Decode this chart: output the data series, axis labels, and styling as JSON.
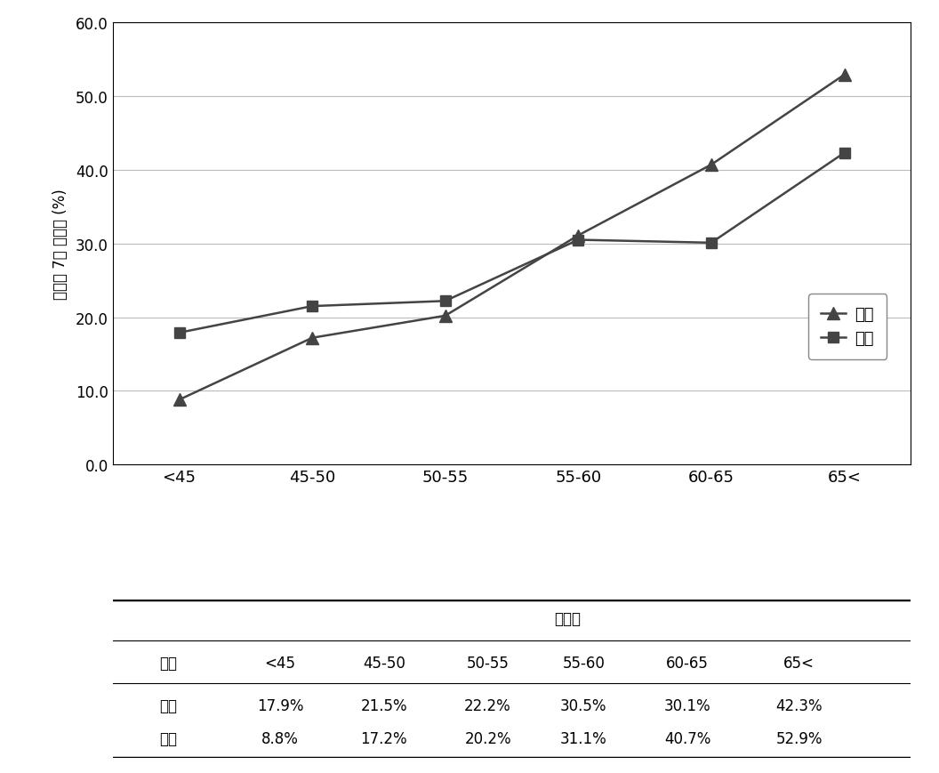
{
  "categories": [
    "<45",
    "45-50",
    "50-55",
    "55-60",
    "60-65",
    "65<"
  ],
  "female_values": [
    8.8,
    17.2,
    20.2,
    31.1,
    40.7,
    52.9
  ],
  "male_values": [
    17.9,
    21.5,
    22.2,
    30.5,
    30.1,
    42.3
  ],
  "ylabel": "고혈압 7년 발생률 (%)",
  "ylim": [
    0.0,
    60.0
  ],
  "yticks": [
    0.0,
    10.0,
    20.0,
    30.0,
    40.0,
    50.0,
    60.0
  ],
  "line_color": "#444444",
  "legend_female": "여성",
  "legend_male": "남성",
  "table_title": "연령별",
  "table_row0_label": "성별",
  "table_row1_label": "남성",
  "table_row2_label": "여성",
  "table_row1_values": [
    "17.9%",
    "21.5%",
    "22.2%",
    "30.5%",
    "30.1%",
    "42.3%"
  ],
  "table_row2_values": [
    "8.8%",
    "17.2%",
    "20.2%",
    "31.1%",
    "40.7%",
    "52.9%"
  ],
  "table_col_labels": [
    "<45",
    "45-50",
    "50-55",
    "55-60",
    "60-65",
    "65<"
  ],
  "bg_color": "#ffffff"
}
